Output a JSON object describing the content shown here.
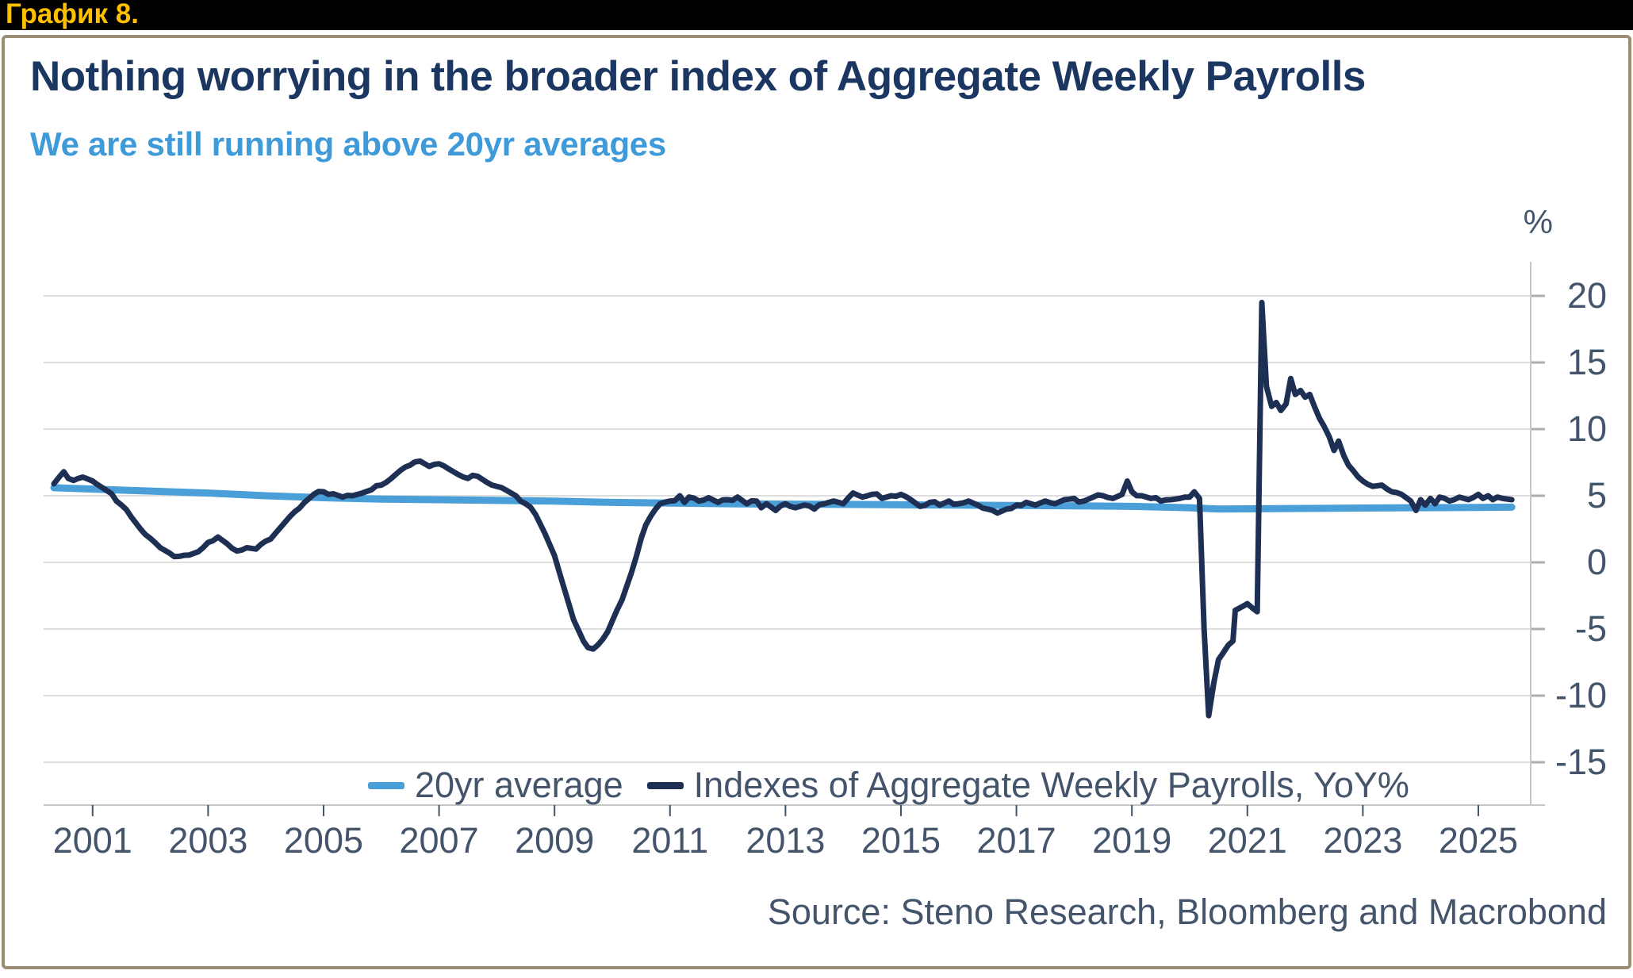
{
  "banner": {
    "label": "График 8.",
    "bg": "#000000",
    "color": "#FFC000"
  },
  "card": {
    "border_color": "#9C8D75",
    "bg": "#ffffff"
  },
  "header": {
    "title": "Nothing worrying in the broader index of Aggregate Weekly Payrolls",
    "subtitle": "We are still running above 20yr averages",
    "title_color": "#1B3660",
    "subtitle_color": "#3E9AD9"
  },
  "chart_data": {
    "type": "line",
    "title": "Nothing worrying in the broader index of Aggregate Weekly Payrolls",
    "subtitle": "We are still running above 20yr averages",
    "unit_label": "%",
    "source": "Source: Steno Research, Bloomberg and Macrobond",
    "axis_color": "#44546A",
    "grid_color": "#DEDEDE",
    "spine_color": "#C6C6C6",
    "ytick_dash_color": "#ADADAD",
    "xlim": [
      2000.2,
      2025.95
    ],
    "ylim": [
      -18.2,
      22.6
    ],
    "grid": true,
    "legend_position": "bottom-inside",
    "x_ticks": [
      2001,
      2003,
      2005,
      2007,
      2009,
      2011,
      2013,
      2015,
      2017,
      2019,
      2021,
      2023,
      2025
    ],
    "y_ticks": [
      20,
      15,
      10,
      5,
      0,
      -5,
      -10,
      -15
    ],
    "legend": [
      {
        "label": "20yr average",
        "color": "#4A9FD8"
      },
      {
        "label": "Indexes of Aggregate Weekly Payrolls, YoY%",
        "color": "#1E2F54"
      }
    ],
    "series": [
      {
        "name": "20yr average",
        "color": "#4A9FD8",
        "stroke_width": 9,
        "points": [
          [
            2000.33,
            5.6
          ],
          [
            2001,
            5.5
          ],
          [
            2002,
            5.35
          ],
          [
            2003,
            5.2
          ],
          [
            2004,
            5.0
          ],
          [
            2005,
            4.85
          ],
          [
            2006,
            4.75
          ],
          [
            2007,
            4.7
          ],
          [
            2008,
            4.65
          ],
          [
            2009,
            4.6
          ],
          [
            2010,
            4.5
          ],
          [
            2011,
            4.45
          ],
          [
            2012,
            4.4
          ],
          [
            2013,
            4.37
          ],
          [
            2014,
            4.35
          ],
          [
            2015,
            4.32
          ],
          [
            2016,
            4.3
          ],
          [
            2017,
            4.27
          ],
          [
            2018,
            4.24
          ],
          [
            2019,
            4.2
          ],
          [
            2020,
            4.1
          ],
          [
            2020.5,
            4.0
          ],
          [
            2021,
            4.02
          ],
          [
            2022,
            4.05
          ],
          [
            2023,
            4.08
          ],
          [
            2024,
            4.1
          ],
          [
            2025,
            4.12
          ],
          [
            2025.58,
            4.14
          ]
        ]
      },
      {
        "name": "Indexes of Aggregate Weekly Payrolls, YoY%",
        "color": "#1E2F54",
        "stroke_width": 7,
        "points": [
          [
            2000.33,
            5.9
          ],
          [
            2000.42,
            6.4
          ],
          [
            2000.5,
            6.8
          ],
          [
            2000.58,
            6.3
          ],
          [
            2000.67,
            6.15
          ],
          [
            2000.75,
            6.3
          ],
          [
            2000.83,
            6.4
          ],
          [
            2000.92,
            6.25
          ],
          [
            2001.0,
            6.1
          ],
          [
            2001.08,
            5.85
          ],
          [
            2001.17,
            5.6
          ],
          [
            2001.33,
            5.15
          ],
          [
            2001.5,
            4.3
          ],
          [
            2001.67,
            3.4
          ],
          [
            2001.83,
            2.5
          ],
          [
            2002.0,
            1.8
          ],
          [
            2002.17,
            1.1
          ],
          [
            2002.33,
            0.7
          ],
          [
            2002.5,
            0.45
          ],
          [
            2002.67,
            0.55
          ],
          [
            2002.83,
            0.8
          ],
          [
            2003.0,
            1.5
          ],
          [
            2003.17,
            1.9
          ],
          [
            2003.33,
            1.4
          ],
          [
            2003.5,
            0.85
          ],
          [
            2003.67,
            1.1
          ],
          [
            2003.83,
            1.0
          ],
          [
            2004.0,
            1.6
          ],
          [
            2004.17,
            2.2
          ],
          [
            2004.33,
            3.0
          ],
          [
            2004.5,
            3.8
          ],
          [
            2004.67,
            4.5
          ],
          [
            2004.83,
            5.1
          ],
          [
            2005.0,
            5.3
          ],
          [
            2005.17,
            5.15
          ],
          [
            2005.33,
            4.9
          ],
          [
            2005.5,
            5.0
          ],
          [
            2005.67,
            5.2
          ],
          [
            2005.83,
            5.45
          ],
          [
            2006.0,
            5.8
          ],
          [
            2006.17,
            6.3
          ],
          [
            2006.33,
            6.9
          ],
          [
            2006.5,
            7.3
          ],
          [
            2006.67,
            7.6
          ],
          [
            2006.83,
            7.2
          ],
          [
            2007.0,
            7.4
          ],
          [
            2007.17,
            7.0
          ],
          [
            2007.33,
            6.6
          ],
          [
            2007.5,
            6.3
          ],
          [
            2007.67,
            6.45
          ],
          [
            2007.83,
            6.0
          ],
          [
            2008.0,
            5.7
          ],
          [
            2008.17,
            5.4
          ],
          [
            2008.33,
            5.0
          ],
          [
            2008.5,
            4.4
          ],
          [
            2008.67,
            3.6
          ],
          [
            2008.83,
            2.2
          ],
          [
            2009.0,
            0.5
          ],
          [
            2009.17,
            -2.0
          ],
          [
            2009.33,
            -4.3
          ],
          [
            2009.5,
            -5.9
          ],
          [
            2009.58,
            -6.4
          ],
          [
            2009.67,
            -6.5
          ],
          [
            2009.75,
            -6.2
          ],
          [
            2009.83,
            -5.8
          ],
          [
            2009.92,
            -5.2
          ],
          [
            2010.0,
            -4.4
          ],
          [
            2010.08,
            -3.6
          ],
          [
            2010.17,
            -2.8
          ],
          [
            2010.25,
            -1.8
          ],
          [
            2010.33,
            -0.8
          ],
          [
            2010.42,
            0.5
          ],
          [
            2010.5,
            1.8
          ],
          [
            2010.58,
            2.8
          ],
          [
            2010.67,
            3.5
          ],
          [
            2010.75,
            4.0
          ],
          [
            2010.83,
            4.4
          ],
          [
            2011.0,
            4.6
          ],
          [
            2011.17,
            5.0
          ],
          [
            2011.25,
            4.5
          ],
          [
            2011.33,
            4.9
          ],
          [
            2011.5,
            4.6
          ],
          [
            2011.67,
            4.85
          ],
          [
            2011.83,
            4.5
          ],
          [
            2012.0,
            4.7
          ],
          [
            2012.17,
            4.9
          ],
          [
            2012.33,
            4.4
          ],
          [
            2012.5,
            4.6
          ],
          [
            2012.58,
            4.1
          ],
          [
            2012.67,
            4.4
          ],
          [
            2012.83,
            3.9
          ],
          [
            2013.0,
            4.4
          ],
          [
            2013.17,
            4.1
          ],
          [
            2013.33,
            4.3
          ],
          [
            2013.5,
            4.0
          ],
          [
            2013.67,
            4.4
          ],
          [
            2013.83,
            4.6
          ],
          [
            2014.0,
            4.4
          ],
          [
            2014.17,
            5.2
          ],
          [
            2014.33,
            4.9
          ],
          [
            2014.5,
            5.1
          ],
          [
            2014.67,
            4.8
          ],
          [
            2014.83,
            5.0
          ],
          [
            2015.0,
            5.1
          ],
          [
            2015.17,
            4.7
          ],
          [
            2015.33,
            4.2
          ],
          [
            2015.5,
            4.5
          ],
          [
            2015.67,
            4.3
          ],
          [
            2015.83,
            4.6
          ],
          [
            2016.0,
            4.4
          ],
          [
            2016.17,
            4.6
          ],
          [
            2016.33,
            4.3
          ],
          [
            2016.5,
            4.0
          ],
          [
            2016.67,
            3.7
          ],
          [
            2016.83,
            4.0
          ],
          [
            2017.0,
            4.3
          ],
          [
            2017.17,
            4.5
          ],
          [
            2017.33,
            4.3
          ],
          [
            2017.5,
            4.6
          ],
          [
            2017.67,
            4.4
          ],
          [
            2017.83,
            4.7
          ],
          [
            2018.0,
            4.8
          ],
          [
            2018.17,
            4.6
          ],
          [
            2018.33,
            4.9
          ],
          [
            2018.5,
            5.0
          ],
          [
            2018.67,
            4.8
          ],
          [
            2018.83,
            5.1
          ],
          [
            2018.92,
            6.1
          ],
          [
            2019.0,
            5.3
          ],
          [
            2019.17,
            5.0
          ],
          [
            2019.33,
            4.8
          ],
          [
            2019.5,
            4.6
          ],
          [
            2019.67,
            4.7
          ],
          [
            2019.83,
            4.8
          ],
          [
            2020.0,
            4.9
          ],
          [
            2020.08,
            5.3
          ],
          [
            2020.17,
            4.8
          ],
          [
            2020.25,
            -5.0
          ],
          [
            2020.33,
            -11.5
          ],
          [
            2020.42,
            -9.0
          ],
          [
            2020.5,
            -7.3
          ],
          [
            2020.58,
            -6.8
          ],
          [
            2020.67,
            -6.2
          ],
          [
            2020.75,
            -5.9
          ],
          [
            2020.79,
            -3.6
          ],
          [
            2020.92,
            -3.3
          ],
          [
            2021.0,
            -3.1
          ],
          [
            2021.08,
            -3.4
          ],
          [
            2021.17,
            -3.7
          ],
          [
            2021.25,
            19.5
          ],
          [
            2021.33,
            13.2
          ],
          [
            2021.42,
            11.7
          ],
          [
            2021.5,
            12.0
          ],
          [
            2021.58,
            11.4
          ],
          [
            2021.67,
            11.9
          ],
          [
            2021.75,
            13.8
          ],
          [
            2021.83,
            12.6
          ],
          [
            2021.92,
            12.9
          ],
          [
            2022.0,
            12.4
          ],
          [
            2022.08,
            12.6
          ],
          [
            2022.17,
            11.6
          ],
          [
            2022.25,
            10.8
          ],
          [
            2022.33,
            10.2
          ],
          [
            2022.42,
            9.4
          ],
          [
            2022.5,
            8.4
          ],
          [
            2022.58,
            9.1
          ],
          [
            2022.67,
            8.0
          ],
          [
            2022.75,
            7.3
          ],
          [
            2022.83,
            6.9
          ],
          [
            2022.92,
            6.4
          ],
          [
            2023.0,
            6.1
          ],
          [
            2023.17,
            5.7
          ],
          [
            2023.33,
            5.8
          ],
          [
            2023.5,
            5.3
          ],
          [
            2023.67,
            5.1
          ],
          [
            2023.83,
            4.6
          ],
          [
            2023.92,
            3.9
          ],
          [
            2024.0,
            4.7
          ],
          [
            2024.08,
            4.3
          ],
          [
            2024.17,
            4.8
          ],
          [
            2024.25,
            4.4
          ],
          [
            2024.33,
            4.9
          ],
          [
            2024.5,
            4.6
          ],
          [
            2024.67,
            4.9
          ],
          [
            2024.83,
            4.7
          ],
          [
            2025.0,
            5.1
          ],
          [
            2025.08,
            4.8
          ],
          [
            2025.17,
            5.0
          ],
          [
            2025.25,
            4.7
          ],
          [
            2025.33,
            4.9
          ],
          [
            2025.42,
            4.8
          ],
          [
            2025.58,
            4.7
          ]
        ]
      }
    ]
  }
}
